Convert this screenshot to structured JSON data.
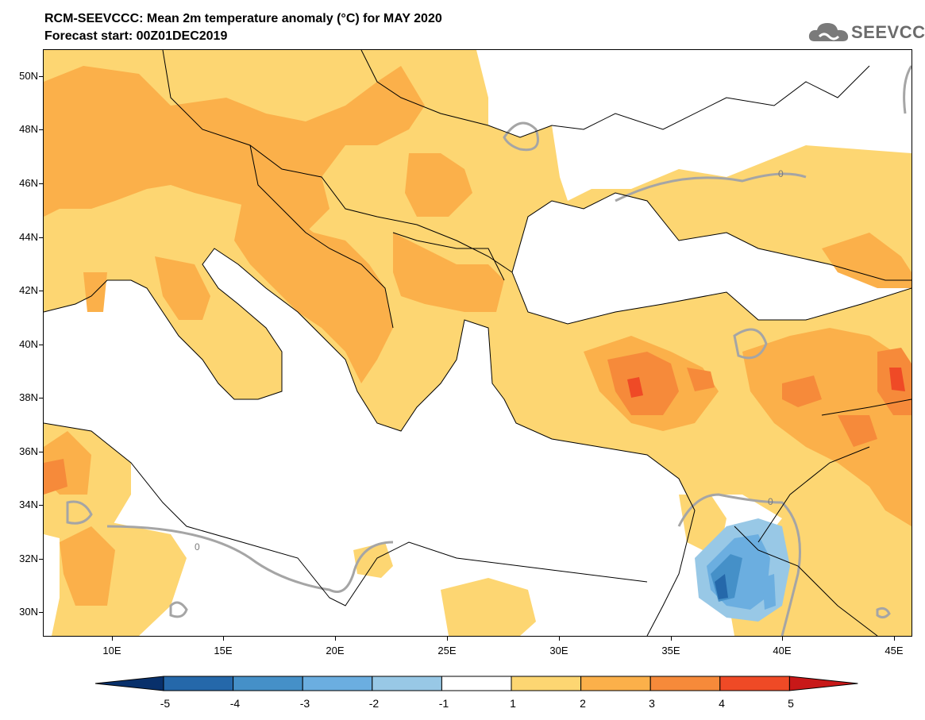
{
  "title": "RCM-SEEVCCC: Mean 2m temperature anomaly (°C) for MAY 2020",
  "subtitle": "Forecast start: 00Z01DEC2019",
  "logo": {
    "text": "SEEVCCC",
    "icon": "cloud-logo-icon"
  },
  "map": {
    "lat_labels": [
      "50N",
      "48N",
      "46N",
      "44N",
      "42N",
      "40N",
      "38N",
      "36N",
      "34N",
      "32N",
      "30N"
    ],
    "lon_labels": [
      "10E",
      "15E",
      "20E",
      "25E",
      "30E",
      "35E",
      "40E",
      "45E"
    ],
    "contour_label": "0",
    "colors": {
      "c_1_2": "#fdd672",
      "c_2_3": "#fbb04a",
      "c_3_4": "#f68a3a",
      "c_4_5": "#ef4a26",
      "c_m1_m2": "#98c8e6",
      "c_m2_m3": "#6baee0",
      "c_m3_m4": "#4590c8",
      "c_m4_m5": "#2568aa",
      "zero_line": "#a5a5a5",
      "borders": "#000000"
    }
  },
  "colorbar": {
    "labels": [
      "-5",
      "-4",
      "-3",
      "-2",
      "-1",
      "1",
      "2",
      "3",
      "4",
      "5"
    ],
    "colors": [
      "#08306b",
      "#2568aa",
      "#4590c8",
      "#6baee0",
      "#98c8e6",
      "#ffffff",
      "#fdd672",
      "#fbb04a",
      "#f68a3a",
      "#ef4a26",
      "#c81818"
    ]
  }
}
